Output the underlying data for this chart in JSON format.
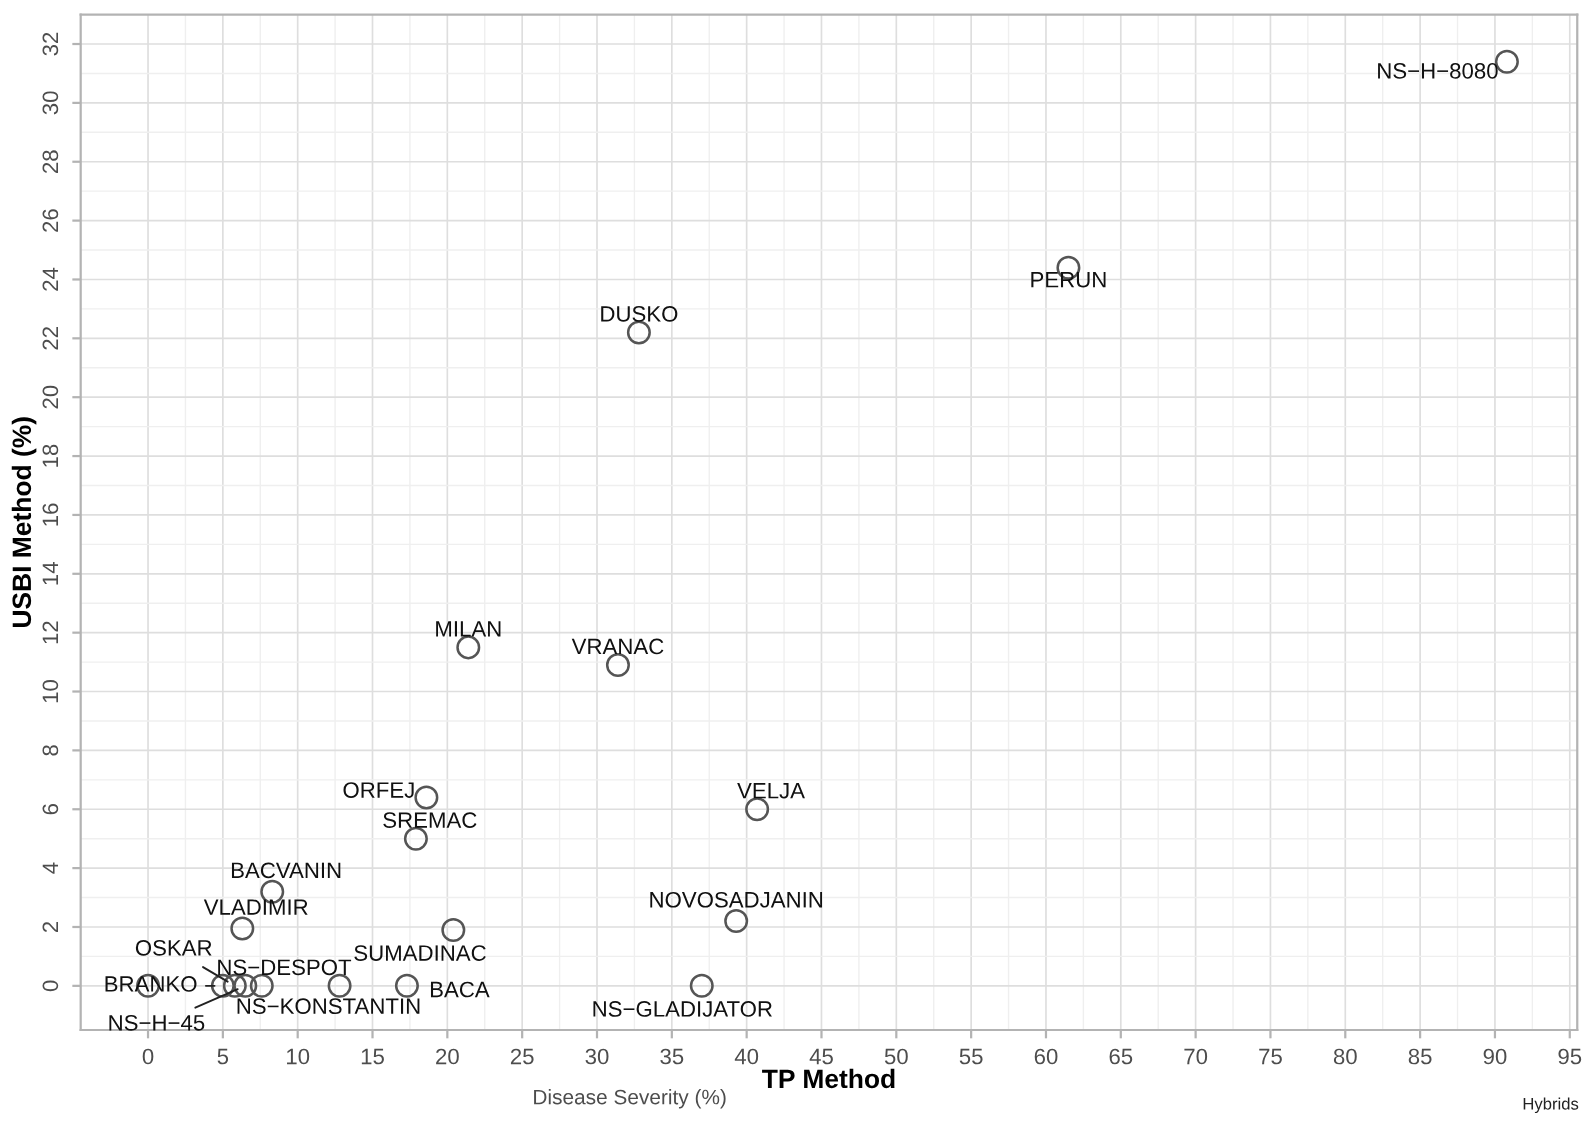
{
  "chart_data": {
    "type": "scatter",
    "xlabel": "TP Method",
    "ylabel": "USBI Method (%)",
    "x": [
      90.8,
      61.5,
      32.8,
      21.4,
      31.4,
      18.6,
      40.7,
      17.9,
      8.3,
      6.3,
      20.4,
      39.3,
      37.0,
      17.3,
      12.8,
      7.6,
      5.8,
      5.0,
      6.5,
      0
    ],
    "series": [
      {
        "color": "#555555",
        "values": [
          31.4,
          24.4,
          22.2,
          11.5,
          10.9,
          6.4,
          6.0,
          5.0,
          3.2,
          1.95,
          1.9,
          2.2,
          0,
          0,
          0,
          0,
          0,
          0,
          0,
          0
        ]
      }
    ],
    "marker": "circle",
    "grid": true,
    "legend": false,
    "xlim": [
      -4.5,
      95.5
    ],
    "xticks": [
      0,
      5,
      10,
      15,
      20,
      25,
      30,
      35,
      40,
      45,
      50,
      55,
      60,
      65,
      70,
      75,
      80,
      85,
      90,
      95
    ],
    "ylim": [
      -1.5,
      33
    ],
    "yticks": [
      0,
      2,
      4,
      6,
      8,
      10,
      12,
      14,
      16,
      18,
      20,
      22,
      24,
      26,
      28,
      30,
      32
    ],
    "annotations": [
      {
        "text": "NS−H−8080",
        "x": 90.8,
        "y": 31.4
      },
      {
        "text": "PERUN",
        "x": 61.5,
        "y": 24.4
      },
      {
        "text": "DUSKO",
        "x": 32.8,
        "y": 22.2
      },
      {
        "text": "MILAN",
        "x": 21.4,
        "y": 11.5
      },
      {
        "text": "VRANAC",
        "x": 31.4,
        "y": 10.9
      },
      {
        "text": "ORFEJ",
        "x": 18.6,
        "y": 6.4
      },
      {
        "text": "VELJA",
        "x": 40.7,
        "y": 6.0
      },
      {
        "text": "SREMAC",
        "x": 17.9,
        "y": 5.0
      },
      {
        "text": "BACVANIN",
        "x": 8.3,
        "y": 3.2
      },
      {
        "text": "VLADIMIR",
        "x": 6.3,
        "y": 1.95
      },
      {
        "text": "SUMADINAC",
        "x": 20.4,
        "y": 1.9
      },
      {
        "text": "NOVOSADJANIN",
        "x": 39.3,
        "y": 2.2
      },
      {
        "text": "NS−GLADIJATOR",
        "x": 37.0,
        "y": 0
      },
      {
        "text": "BACA",
        "x": 17.3,
        "y": 0
      },
      {
        "text": "NS−KONSTANTIN",
        "x": 12.8,
        "y": 0
      },
      {
        "text": "NS−DESPOT",
        "x": 7.6,
        "y": 0
      },
      {
        "text": "OSKAR",
        "x": 5.8,
        "y": 0
      },
      {
        "text": "BRANKO",
        "x": 5.0,
        "y": 0
      },
      {
        "text": "NS−H−45",
        "x": 6.5,
        "y": 0
      },
      "Disease Severity (%)",
      "Hybrids"
    ]
  }
}
